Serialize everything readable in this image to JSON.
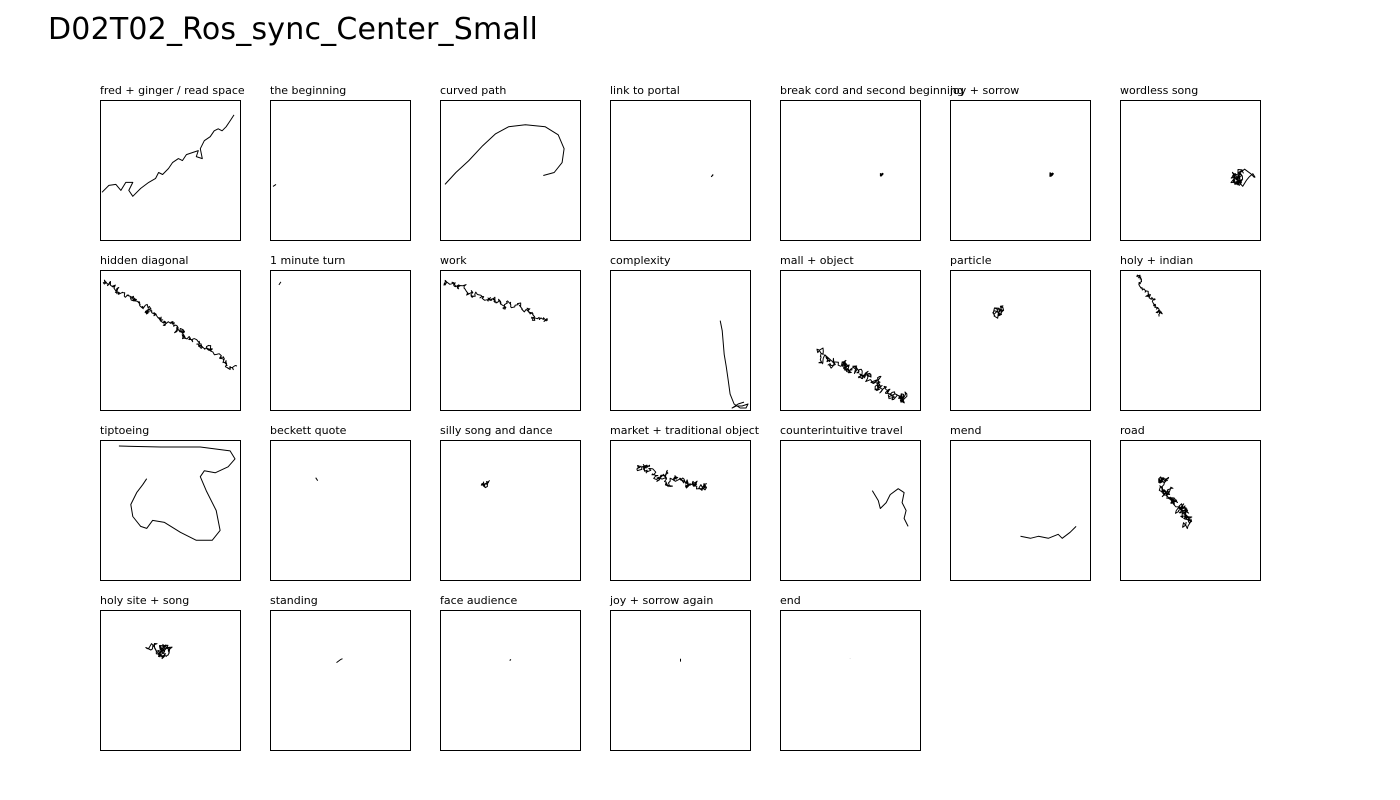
{
  "title": "D02T02_Ros_sync_Center_Small",
  "chart_data": {
    "type": "small-multiples-trajectory",
    "columns": 7,
    "xlim": [
      0,
      140
    ],
    "ylim": [
      0,
      140
    ],
    "panels": [
      {
        "label": "fred + ginger / read space",
        "kind": "path",
        "points": [
          [
            0,
            92
          ],
          [
            8,
            85
          ],
          [
            15,
            84
          ],
          [
            20,
            90
          ],
          [
            25,
            82
          ],
          [
            32,
            82
          ],
          [
            28,
            90
          ],
          [
            32,
            96
          ],
          [
            40,
            88
          ],
          [
            48,
            82
          ],
          [
            55,
            78
          ],
          [
            58,
            72
          ],
          [
            62,
            74
          ],
          [
            68,
            68
          ],
          [
            72,
            62
          ],
          [
            78,
            58
          ],
          [
            82,
            60
          ],
          [
            86,
            54
          ],
          [
            92,
            52
          ],
          [
            98,
            50
          ],
          [
            96,
            56
          ],
          [
            102,
            58
          ],
          [
            100,
            48
          ],
          [
            104,
            40
          ],
          [
            110,
            36
          ],
          [
            114,
            30
          ],
          [
            118,
            28
          ],
          [
            122,
            30
          ],
          [
            126,
            26
          ],
          [
            130,
            20
          ],
          [
            134,
            14
          ]
        ]
      },
      {
        "label": "the beginning",
        "kind": "path",
        "points": [
          [
            2,
            86
          ],
          [
            5,
            84
          ]
        ]
      },
      {
        "label": "curved path",
        "kind": "path",
        "points": [
          [
            4,
            84
          ],
          [
            15,
            72
          ],
          [
            28,
            60
          ],
          [
            42,
            45
          ],
          [
            55,
            33
          ],
          [
            68,
            26
          ],
          [
            85,
            24
          ],
          [
            105,
            26
          ],
          [
            118,
            34
          ],
          [
            124,
            48
          ],
          [
            122,
            62
          ],
          [
            114,
            72
          ],
          [
            103,
            75
          ]
        ]
      },
      {
        "label": "link to portal",
        "kind": "dot",
        "center": [
          102,
          75
        ],
        "r": 1.5,
        "n": 4
      },
      {
        "label": "break cord and second beginning",
        "kind": "dot",
        "center": [
          102,
          74
        ],
        "r": 2,
        "n": 6
      },
      {
        "label": "joy + sorrow",
        "kind": "dot",
        "center": [
          102,
          74
        ],
        "r": 2.5,
        "n": 8
      },
      {
        "label": "wordless song",
        "kind": "cluster",
        "center": [
          120,
          74
        ],
        "r": 14,
        "n": 70,
        "seed": 7
      },
      {
        "label": "hidden diagonal",
        "kind": "walk",
        "start": [
          5,
          12
        ],
        "end": [
          135,
          98
        ],
        "n": 260,
        "amp": 5,
        "seed": 11
      },
      {
        "label": "1 minute turn",
        "kind": "path",
        "points": [
          [
            8,
            14
          ],
          [
            10,
            11
          ]
        ]
      },
      {
        "label": "work",
        "kind": "walk",
        "start": [
          5,
          10
        ],
        "end": [
          108,
          50
        ],
        "n": 160,
        "amp": 5,
        "seed": 23
      },
      {
        "label": "complexity",
        "kind": "path",
        "points": [
          [
            110,
            50
          ],
          [
            112,
            60
          ],
          [
            113,
            72
          ],
          [
            114,
            84
          ],
          [
            116,
            96
          ],
          [
            118,
            110
          ],
          [
            120,
            124
          ],
          [
            124,
            134
          ],
          [
            130,
            138
          ],
          [
            136,
            138
          ],
          [
            138,
            134
          ],
          [
            132,
            136
          ],
          [
            126,
            136
          ],
          [
            122,
            138
          ],
          [
            128,
            134
          ],
          [
            134,
            132
          ]
        ]
      },
      {
        "label": "mall + object",
        "kind": "walk",
        "start": [
          42,
          82
        ],
        "end": [
          128,
          132
        ],
        "n": 240,
        "amp": 7,
        "seed": 37
      },
      {
        "label": "particle",
        "kind": "cluster",
        "center": [
          45,
          40
        ],
        "r": 10,
        "n": 40,
        "seed": 41
      },
      {
        "label": "holy + indian",
        "kind": "walk",
        "start": [
          18,
          6
        ],
        "end": [
          40,
          45
        ],
        "n": 90,
        "amp": 4,
        "seed": 53
      },
      {
        "label": "tiptoeing",
        "kind": "path",
        "points": [
          [
            18,
            5
          ],
          [
            60,
            6
          ],
          [
            100,
            6
          ],
          [
            130,
            10
          ],
          [
            135,
            18
          ],
          [
            128,
            26
          ],
          [
            115,
            32
          ],
          [
            104,
            30
          ],
          [
            100,
            36
          ],
          [
            106,
            50
          ],
          [
            116,
            70
          ],
          [
            120,
            90
          ],
          [
            112,
            100
          ],
          [
            96,
            100
          ],
          [
            80,
            92
          ],
          [
            64,
            82
          ],
          [
            52,
            80
          ],
          [
            46,
            88
          ],
          [
            40,
            86
          ],
          [
            32,
            76
          ],
          [
            30,
            64
          ],
          [
            36,
            52
          ],
          [
            42,
            44
          ],
          [
            46,
            38
          ]
        ]
      },
      {
        "label": "beckett quote",
        "kind": "path",
        "points": [
          [
            45,
            37
          ],
          [
            47,
            40
          ]
        ]
      },
      {
        "label": "silly song and dance",
        "kind": "cluster",
        "center": [
          44,
          42
        ],
        "r": 6,
        "n": 40,
        "seed": 61
      },
      {
        "label": "market + traditional object",
        "kind": "walk",
        "start": [
          30,
          28
        ],
        "end": [
          98,
          50
        ],
        "n": 180,
        "amp": 6,
        "seed": 67
      },
      {
        "label": "counterintuitive travel",
        "kind": "path",
        "points": [
          [
            92,
            50
          ],
          [
            98,
            60
          ],
          [
            100,
            68
          ],
          [
            106,
            62
          ],
          [
            110,
            54
          ],
          [
            118,
            48
          ],
          [
            124,
            52
          ],
          [
            122,
            62
          ],
          [
            126,
            70
          ],
          [
            124,
            78
          ],
          [
            128,
            86
          ]
        ]
      },
      {
        "label": "mend",
        "kind": "path",
        "points": [
          [
            70,
            96
          ],
          [
            80,
            98
          ],
          [
            88,
            96
          ],
          [
            98,
            98
          ],
          [
            108,
            94
          ],
          [
            112,
            98
          ],
          [
            120,
            92
          ],
          [
            126,
            86
          ]
        ]
      },
      {
        "label": "road",
        "kind": "walk",
        "start": [
          40,
          40
        ],
        "end": [
          70,
          85
        ],
        "n": 200,
        "amp": 7,
        "seed": 79
      },
      {
        "label": "holy site + song",
        "kind": "cluster",
        "center": [
          60,
          40
        ],
        "r": 12,
        "n": 80,
        "seed": 83
      },
      {
        "label": "standing",
        "kind": "path",
        "points": [
          [
            66,
            52
          ],
          [
            70,
            49
          ],
          [
            72,
            48
          ]
        ]
      },
      {
        "label": "face audience",
        "kind": "dot",
        "center": [
          70,
          49
        ],
        "r": 0.8,
        "n": 3
      },
      {
        "label": "joy + sorrow again",
        "kind": "path",
        "points": [
          [
            70,
            48
          ],
          [
            70,
            51
          ]
        ]
      },
      {
        "label": "end",
        "kind": "dot",
        "center": [
          70,
          48
        ],
        "r": 0.5,
        "n": 2
      }
    ]
  }
}
